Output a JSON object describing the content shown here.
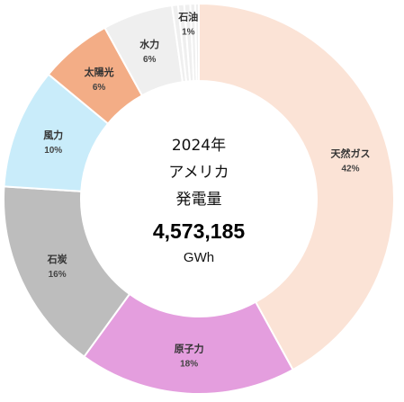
{
  "chart_data": {
    "type": "pie",
    "variant": "donut",
    "center": {
      "year": "2024年",
      "country": "アメリカ",
      "label": "発電量",
      "total": "4,573,185",
      "unit": "GWh"
    },
    "slices": [
      {
        "name": "天然ガス",
        "pct_label": "42%",
        "value": 42.0,
        "color": "#fbe3d6",
        "show_label": true
      },
      {
        "name": "原子力",
        "pct_label": "18%",
        "value": 18.0,
        "color": "#e49ede",
        "show_label": true
      },
      {
        "name": "石炭",
        "pct_label": "16%",
        "value": 16.0,
        "color": "#bdbdbd",
        "show_label": true
      },
      {
        "name": "風力",
        "pct_label": "10%",
        "value": 10.0,
        "color": "#c9ecfa",
        "show_label": true
      },
      {
        "name": "太陽光",
        "pct_label": "6%",
        "value": 6.0,
        "color": "#f3ad86",
        "show_label": true
      },
      {
        "name": "水力",
        "pct_label": "6%",
        "value": 5.8,
        "color": "#efefef",
        "show_label": true
      },
      {
        "name": "",
        "pct_label": "",
        "value": 0.5,
        "color": "#efefef",
        "show_label": false
      },
      {
        "name": "",
        "pct_label": "",
        "value": 0.5,
        "color": "#efefef",
        "show_label": false
      },
      {
        "name": "石油",
        "pct_label": "1%",
        "value": 0.5,
        "color": "#efefef",
        "show_label": true
      },
      {
        "name": "",
        "pct_label": "",
        "value": 0.4,
        "color": "#efefef",
        "show_label": false
      },
      {
        "name": "",
        "pct_label": "",
        "value": 0.3,
        "color": "#efefef",
        "show_label": false
      }
    ]
  }
}
